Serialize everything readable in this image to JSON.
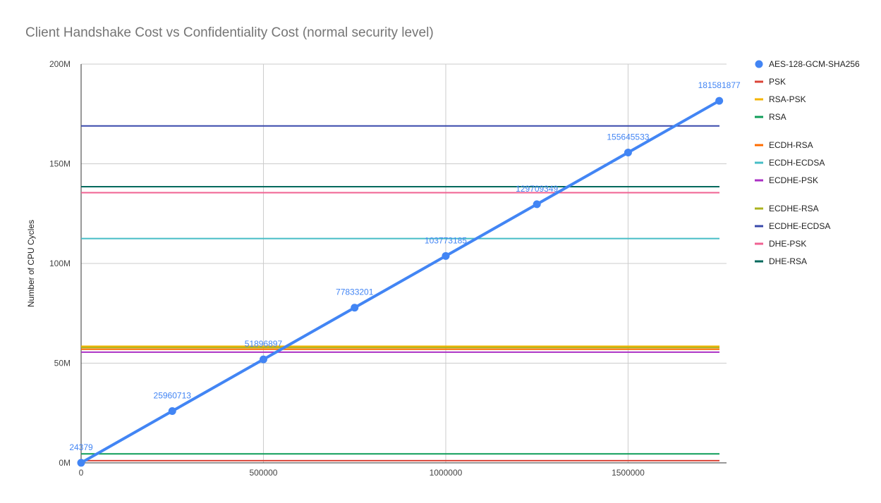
{
  "chart_data": {
    "type": "line",
    "title": "Client Handshake Cost vs Confidentiality Cost (normal security level)",
    "xlabel": "",
    "ylabel": "Number of CPU Cycles",
    "xlim": [
      0,
      1770000
    ],
    "ylim": [
      0,
      200000000
    ],
    "grid": true,
    "legend_position": "right",
    "x_ticks": [
      {
        "value": 0,
        "label": "0"
      },
      {
        "value": 500000,
        "label": "500000"
      },
      {
        "value": 1000000,
        "label": "1000000"
      },
      {
        "value": 1500000,
        "label": "1500000"
      }
    ],
    "y_ticks": [
      {
        "value": 0,
        "label": "0M"
      },
      {
        "value": 50000000,
        "label": "50M"
      },
      {
        "value": 100000000,
        "label": "100M"
      },
      {
        "value": 150000000,
        "label": "150M"
      },
      {
        "value": 200000000,
        "label": "200M"
      }
    ],
    "x": [
      0,
      250000,
      500000,
      750000,
      1000000,
      1250000,
      1500000,
      1750000
    ],
    "series": [
      {
        "name": "AES-128-GCM-SHA256",
        "kind": "line-points",
        "color": "#4285f4",
        "values": [
          24379,
          25960713,
          51896897,
          77833201,
          103773185,
          129709349,
          155645533,
          181581877
        ],
        "data_labels": [
          "24379",
          "25960713",
          "51896897",
          "77833201",
          "103773185",
          "129709349",
          "155645533",
          "181581877"
        ]
      },
      {
        "name": "PSK",
        "kind": "constant",
        "color": "#db4437",
        "value": 1100000
      },
      {
        "name": "RSA-PSK",
        "kind": "constant",
        "color": "#f4b400",
        "value": 58500000
      },
      {
        "name": "RSA",
        "kind": "constant",
        "color": "#0f9d58",
        "value": 4500000
      },
      {
        "name": "ECDH-RSA",
        "kind": "constant",
        "color": "#ff6d00",
        "value": 57000000
      },
      {
        "name": "ECDH-ECDSA",
        "kind": "constant",
        "color": "#46bdc6",
        "value": 112500000
      },
      {
        "name": "ECDHE-PSK",
        "kind": "constant",
        "color": "#ab30c4",
        "value": 55500000
      },
      {
        "name": "ECDHE-RSA",
        "kind": "constant",
        "color": "#abb31f",
        "value": 57800000
      },
      {
        "name": "ECDHE-ECDSA",
        "kind": "constant",
        "color": "#3949ab",
        "value": 169000000
      },
      {
        "name": "DHE-PSK",
        "kind": "constant",
        "color": "#f06292",
        "value": 135500000
      },
      {
        "name": "DHE-RSA",
        "kind": "constant",
        "color": "#00695c",
        "value": 138500000
      }
    ],
    "legend_groups": [
      [
        "AES-128-GCM-SHA256",
        "PSK",
        "RSA-PSK",
        "RSA"
      ],
      [
        "ECDH-RSA",
        "ECDH-ECDSA",
        "ECDHE-PSK"
      ],
      [
        "ECDHE-RSA",
        "ECDHE-ECDSA",
        "DHE-PSK",
        "DHE-RSA"
      ]
    ]
  }
}
